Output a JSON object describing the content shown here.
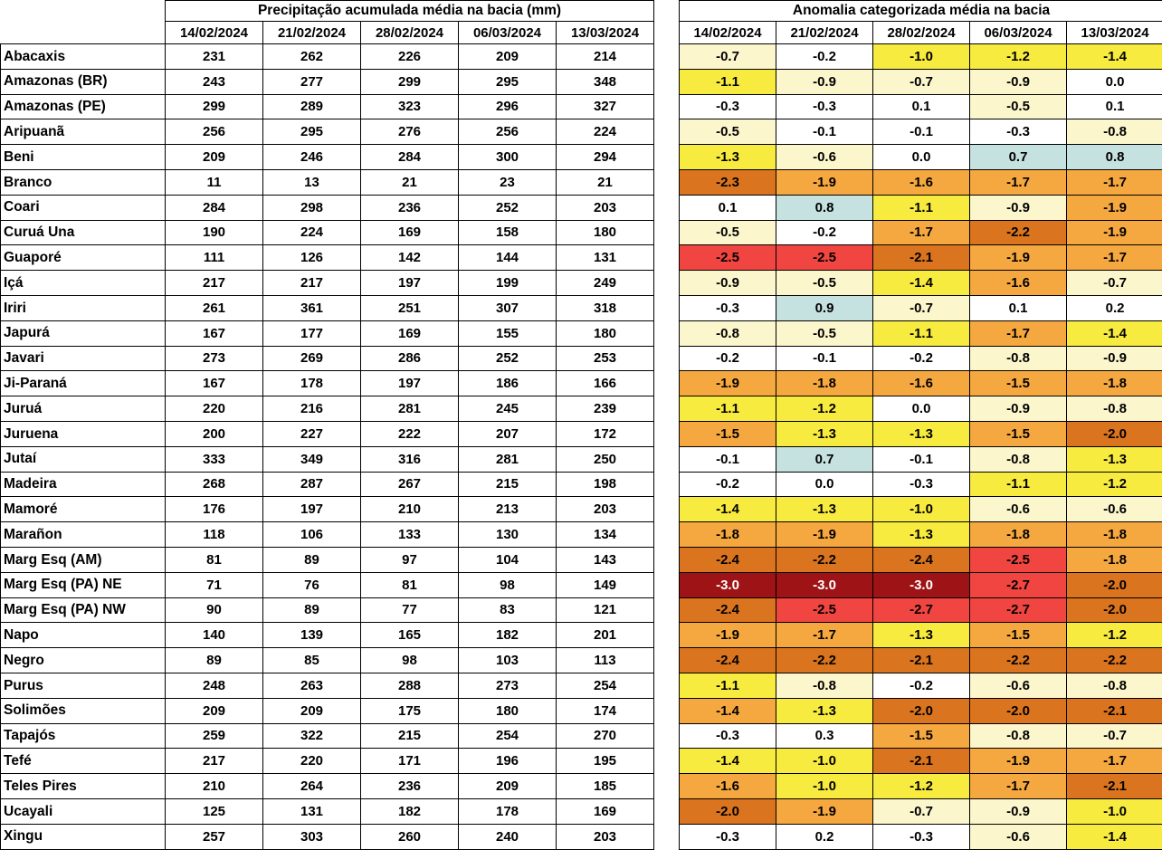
{
  "precip": {
    "title": "Precipitação acumulada média na bacia (mm)"
  },
  "anomaly": {
    "title": "Anomalia categorizada média na bacia"
  },
  "dates": [
    "14/02/2024",
    "21/02/2024",
    "28/02/2024",
    "06/03/2024",
    "13/03/2024"
  ],
  "basins": [
    "Abacaxis",
    "Amazonas (BR)",
    "Amazonas (PE)",
    "Aripuanã",
    "Beni",
    "Branco",
    "Coari",
    "Curuá Una",
    "Guaporé",
    "Içá",
    "Iriri",
    "Japurá",
    "Javari",
    "Ji-Paraná",
    "Juruá",
    "Juruena",
    "Jutaí",
    "Madeira",
    "Mamoré",
    "Marañon",
    "Marg Esq (AM)",
    "Marg Esq (PA) NE",
    "Marg Esq (PA) NW",
    "Napo",
    "Negro",
    "Purus",
    "Solimões",
    "Tapajós",
    "Tefé",
    "Teles Pires",
    "Ucayali",
    "Xingu"
  ],
  "palette": {
    "white": "#FFFFFF",
    "cream": "#FCF6CD",
    "yellow": "#F8EB3F",
    "orange": "#F6A840",
    "dark_orange": "#DA741E",
    "red": "#F04540",
    "dark_red": "#9E1315",
    "blue": "#C6E2E0",
    "dark_red_text": "#FFFFFF",
    "default_text": "#000000",
    "border": "#000000"
  },
  "chart_data": [
    {
      "type": "table",
      "title": "Precipitação acumulada média na bacia (mm)",
      "unit": "mm",
      "columns": [
        "14/02/2024",
        "21/02/2024",
        "28/02/2024",
        "06/03/2024",
        "13/03/2024"
      ],
      "rows": [
        "Abacaxis",
        "Amazonas (BR)",
        "Amazonas (PE)",
        "Aripuanã",
        "Beni",
        "Branco",
        "Coari",
        "Curuá Una",
        "Guaporé",
        "Içá",
        "Iriri",
        "Japurá",
        "Javari",
        "Ji-Paraná",
        "Juruá",
        "Juruena",
        "Jutaí",
        "Madeira",
        "Mamoré",
        "Marañon",
        "Marg Esq (AM)",
        "Marg Esq (PA) NE",
        "Marg Esq (PA) NW",
        "Napo",
        "Negro",
        "Purus",
        "Solimões",
        "Tapajós",
        "Tefé",
        "Teles Pires",
        "Ucayali",
        "Xingu"
      ],
      "values": [
        [
          231,
          262,
          226,
          209,
          214
        ],
        [
          243,
          277,
          299,
          295,
          348
        ],
        [
          299,
          289,
          323,
          296,
          327
        ],
        [
          256,
          295,
          276,
          256,
          224
        ],
        [
          209,
          246,
          284,
          300,
          294
        ],
        [
          11,
          13,
          21,
          23,
          21
        ],
        [
          284,
          298,
          236,
          252,
          203
        ],
        [
          190,
          224,
          169,
          158,
          180
        ],
        [
          111,
          126,
          142,
          144,
          131
        ],
        [
          217,
          217,
          197,
          199,
          249
        ],
        [
          261,
          361,
          251,
          307,
          318
        ],
        [
          167,
          177,
          169,
          155,
          180
        ],
        [
          273,
          269,
          286,
          252,
          253
        ],
        [
          167,
          178,
          197,
          186,
          166
        ],
        [
          220,
          216,
          281,
          245,
          239
        ],
        [
          200,
          227,
          222,
          207,
          172
        ],
        [
          333,
          349,
          316,
          281,
          250
        ],
        [
          268,
          287,
          267,
          215,
          198
        ],
        [
          176,
          197,
          210,
          213,
          203
        ],
        [
          118,
          106,
          133,
          130,
          134
        ],
        [
          81,
          89,
          97,
          104,
          143
        ],
        [
          71,
          76,
          81,
          98,
          149
        ],
        [
          90,
          89,
          77,
          83,
          121
        ],
        [
          140,
          139,
          165,
          182,
          201
        ],
        [
          89,
          85,
          98,
          103,
          113
        ],
        [
          248,
          263,
          288,
          273,
          254
        ],
        [
          209,
          209,
          175,
          180,
          174
        ],
        [
          259,
          322,
          215,
          254,
          270
        ],
        [
          217,
          220,
          171,
          196,
          195
        ],
        [
          210,
          264,
          236,
          209,
          185
        ],
        [
          125,
          131,
          182,
          178,
          169
        ],
        [
          257,
          303,
          260,
          240,
          203
        ]
      ]
    },
    {
      "type": "heatmap",
      "title": "Anomalia categorizada média na bacia",
      "columns": [
        "14/02/2024",
        "21/02/2024",
        "28/02/2024",
        "06/03/2024",
        "13/03/2024"
      ],
      "rows": [
        "Abacaxis",
        "Amazonas (BR)",
        "Amazonas (PE)",
        "Aripuanã",
        "Beni",
        "Branco",
        "Coari",
        "Curuá Una",
        "Guaporé",
        "Içá",
        "Iriri",
        "Japurá",
        "Javari",
        "Ji-Paraná",
        "Juruá",
        "Juruena",
        "Jutaí",
        "Madeira",
        "Mamoré",
        "Marañon",
        "Marg Esq (AM)",
        "Marg Esq (PA) NE",
        "Marg Esq (PA) NW",
        "Napo",
        "Negro",
        "Purus",
        "Solimões",
        "Tapajós",
        "Tefé",
        "Teles Pires",
        "Ucayali",
        "Xingu"
      ],
      "values": [
        [
          "-0.7",
          "-0.2",
          "-1.0",
          "-1.2",
          "-1.4"
        ],
        [
          "-1.1",
          "-0.9",
          "-0.7",
          "-0.9",
          "0.0"
        ],
        [
          "-0.3",
          "-0.3",
          "0.1",
          "-0.5",
          "0.1"
        ],
        [
          "-0.5",
          "-0.1",
          "-0.1",
          "-0.3",
          "-0.8"
        ],
        [
          "-1.3",
          "-0.6",
          "0.0",
          "0.7",
          "0.8"
        ],
        [
          "-2.3",
          "-1.9",
          "-1.6",
          "-1.7",
          "-1.7"
        ],
        [
          "0.1",
          "0.8",
          "-1.1",
          "-0.9",
          "-1.9"
        ],
        [
          "-0.5",
          "-0.2",
          "-1.7",
          "-2.2",
          "-1.9"
        ],
        [
          "-2.5",
          "-2.5",
          "-2.1",
          "-1.9",
          "-1.7"
        ],
        [
          "-0.9",
          "-0.5",
          "-1.4",
          "-1.6",
          "-0.7"
        ],
        [
          "-0.3",
          "0.9",
          "-0.7",
          "0.1",
          "0.2"
        ],
        [
          "-0.8",
          "-0.5",
          "-1.1",
          "-1.7",
          "-1.4"
        ],
        [
          "-0.2",
          "-0.1",
          "-0.2",
          "-0.8",
          "-0.9"
        ],
        [
          "-1.9",
          "-1.8",
          "-1.6",
          "-1.5",
          "-1.8"
        ],
        [
          "-1.1",
          "-1.2",
          "0.0",
          "-0.9",
          "-0.8"
        ],
        [
          "-1.5",
          "-1.3",
          "-1.3",
          "-1.5",
          "-2.0"
        ],
        [
          "-0.1",
          "0.7",
          "-0.1",
          "-0.8",
          "-1.3"
        ],
        [
          "-0.2",
          "0.0",
          "-0.3",
          "-1.1",
          "-1.2"
        ],
        [
          "-1.4",
          "-1.3",
          "-1.0",
          "-0.6",
          "-0.6"
        ],
        [
          "-1.8",
          "-1.9",
          "-1.3",
          "-1.8",
          "-1.8"
        ],
        [
          "-2.4",
          "-2.2",
          "-2.4",
          "-2.5",
          "-1.8"
        ],
        [
          "-3.0",
          "-3.0",
          "-3.0",
          "-2.7",
          "-2.0"
        ],
        [
          "-2.4",
          "-2.5",
          "-2.7",
          "-2.7",
          "-2.0"
        ],
        [
          "-1.9",
          "-1.7",
          "-1.3",
          "-1.5",
          "-1.2"
        ],
        [
          "-2.4",
          "-2.2",
          "-2.1",
          "-2.2",
          "-2.2"
        ],
        [
          "-1.1",
          "-0.8",
          "-0.2",
          "-0.6",
          "-0.8"
        ],
        [
          "-1.4",
          "-1.3",
          "-2.0",
          "-2.0",
          "-2.1"
        ],
        [
          "-0.3",
          "0.3",
          "-1.5",
          "-0.8",
          "-0.7"
        ],
        [
          "-1.4",
          "-1.0",
          "-2.1",
          "-1.9",
          "-1.7"
        ],
        [
          "-1.6",
          "-1.0",
          "-1.2",
          "-1.7",
          "-2.1"
        ],
        [
          "-2.0",
          "-1.9",
          "-0.7",
          "-0.9",
          "-1.0"
        ],
        [
          "-0.3",
          "0.2",
          "-0.3",
          "-0.6",
          "-1.4"
        ]
      ],
      "cell_colors": [
        [
          "cream",
          "white",
          "yellow",
          "yellow",
          "yellow"
        ],
        [
          "yellow",
          "cream",
          "cream",
          "cream",
          "white"
        ],
        [
          "white",
          "white",
          "white",
          "cream",
          "white"
        ],
        [
          "cream",
          "white",
          "white",
          "white",
          "cream"
        ],
        [
          "yellow",
          "cream",
          "white",
          "blue",
          "blue"
        ],
        [
          "dark_orange",
          "orange",
          "orange",
          "orange",
          "orange"
        ],
        [
          "white",
          "blue",
          "yellow",
          "cream",
          "orange"
        ],
        [
          "cream",
          "white",
          "orange",
          "dark_orange",
          "orange"
        ],
        [
          "red",
          "red",
          "dark_orange",
          "orange",
          "orange"
        ],
        [
          "cream",
          "cream",
          "yellow",
          "orange",
          "cream"
        ],
        [
          "white",
          "blue",
          "cream",
          "white",
          "white"
        ],
        [
          "cream",
          "cream",
          "yellow",
          "orange",
          "yellow"
        ],
        [
          "white",
          "white",
          "white",
          "cream",
          "cream"
        ],
        [
          "orange",
          "orange",
          "orange",
          "orange",
          "orange"
        ],
        [
          "yellow",
          "yellow",
          "white",
          "cream",
          "cream"
        ],
        [
          "orange",
          "yellow",
          "yellow",
          "orange",
          "dark_orange"
        ],
        [
          "white",
          "blue",
          "white",
          "cream",
          "yellow"
        ],
        [
          "white",
          "white",
          "white",
          "yellow",
          "yellow"
        ],
        [
          "yellow",
          "yellow",
          "yellow",
          "cream",
          "cream"
        ],
        [
          "orange",
          "orange",
          "yellow",
          "orange",
          "orange"
        ],
        [
          "dark_orange",
          "dark_orange",
          "dark_orange",
          "red",
          "orange"
        ],
        [
          "dark_red",
          "dark_red",
          "dark_red",
          "red",
          "dark_orange"
        ],
        [
          "dark_orange",
          "red",
          "red",
          "red",
          "dark_orange"
        ],
        [
          "orange",
          "orange",
          "yellow",
          "orange",
          "yellow"
        ],
        [
          "dark_orange",
          "dark_orange",
          "dark_orange",
          "dark_orange",
          "dark_orange"
        ],
        [
          "yellow",
          "cream",
          "white",
          "cream",
          "cream"
        ],
        [
          "orange",
          "yellow",
          "dark_orange",
          "dark_orange",
          "dark_orange"
        ],
        [
          "white",
          "white",
          "orange",
          "cream",
          "cream"
        ],
        [
          "yellow",
          "yellow",
          "dark_orange",
          "orange",
          "orange"
        ],
        [
          "orange",
          "yellow",
          "yellow",
          "orange",
          "dark_orange"
        ],
        [
          "dark_orange",
          "orange",
          "cream",
          "cream",
          "yellow"
        ],
        [
          "white",
          "white",
          "white",
          "cream",
          "yellow"
        ]
      ]
    }
  ]
}
